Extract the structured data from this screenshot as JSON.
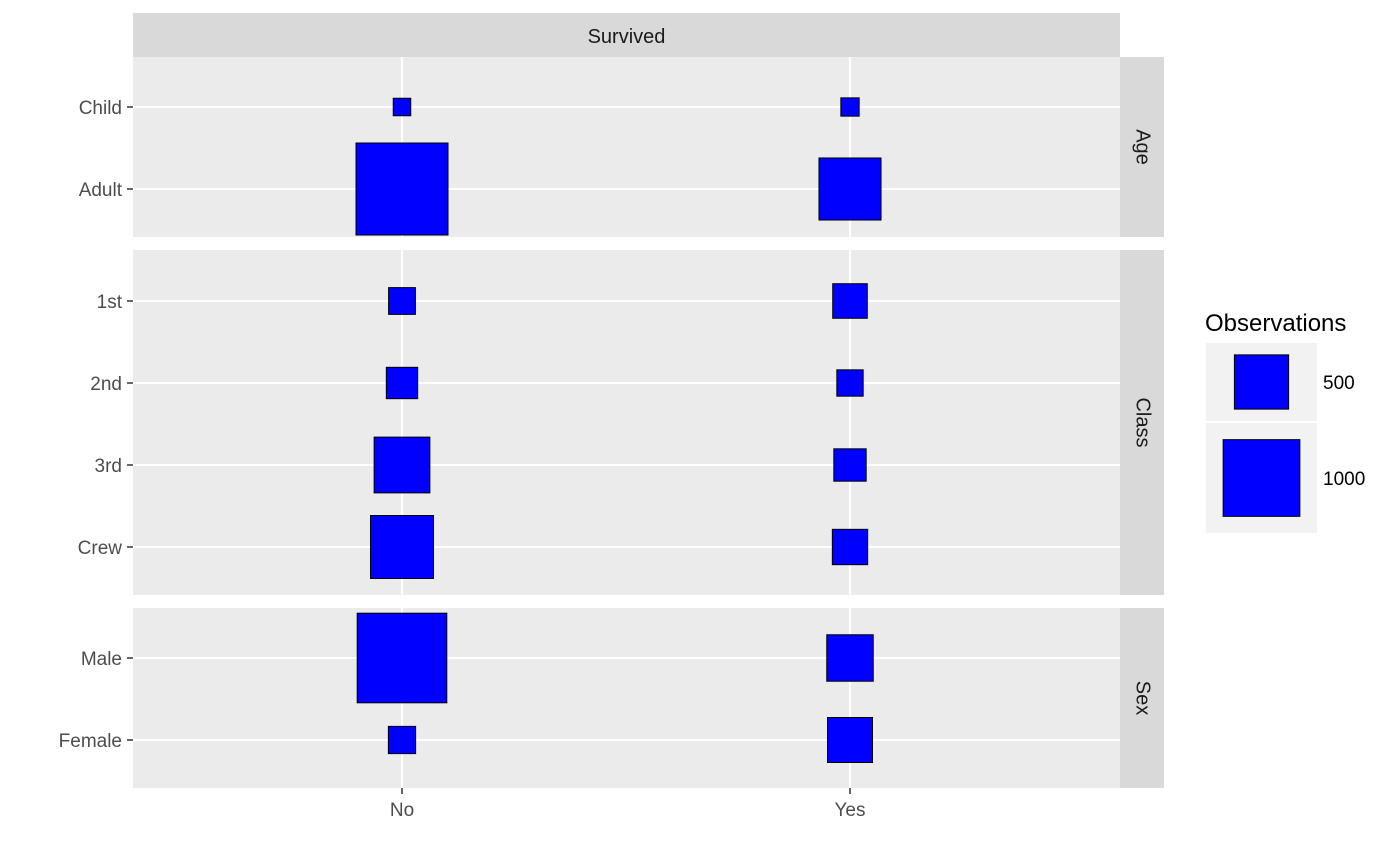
{
  "chart_data": {
    "type": "tile-plot",
    "column_strip": "Survived",
    "x_categories": [
      "No",
      "Yes"
    ],
    "fill_color": "#0000FF",
    "outline_color": "#000000",
    "panel_background": "#EBEBEB",
    "strip_background": "#D9D9D9",
    "grid": true,
    "panels": [
      {
        "strip": "Age",
        "categories": [
          "Child",
          "Adult"
        ],
        "counts": {
          "No": [
            52,
            1438
          ],
          "Yes": [
            57,
            654
          ]
        }
      },
      {
        "strip": "Class",
        "categories": [
          "1st",
          "2nd",
          "3rd",
          "Crew"
        ],
        "counts": {
          "No": [
            122,
            167,
            528,
            673
          ],
          "Yes": [
            203,
            118,
            178,
            212
          ]
        }
      },
      {
        "strip": "Sex",
        "categories": [
          "Male",
          "Female"
        ],
        "counts": {
          "No": [
            1364,
            126
          ],
          "Yes": [
            367,
            344
          ]
        }
      }
    ],
    "legend": {
      "title": "Observations",
      "placement": "right",
      "entries": [
        {
          "label": "500",
          "value": 500
        },
        {
          "label": "1000",
          "value": 1000
        }
      ]
    }
  }
}
